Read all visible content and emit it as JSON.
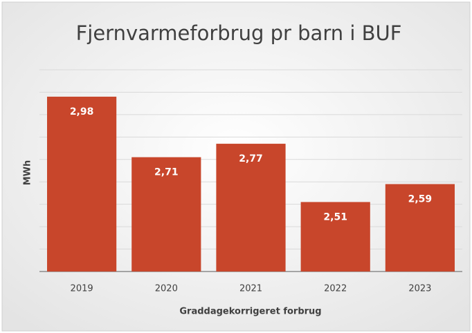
{
  "chart_data": {
    "type": "bar",
    "title": "Fjernvarmeforbrug pr barn i BUF",
    "xlabel": "Graddagekorrigeret forbrug",
    "ylabel": "MWh",
    "categories": [
      "2019",
      "2020",
      "2021",
      "2022",
      "2023"
    ],
    "values": [
      2.98,
      2.71,
      2.77,
      2.51,
      2.59
    ],
    "value_labels": [
      "2,98",
      "2,71",
      "2,77",
      "2,51",
      "2,59"
    ],
    "color": "#c8462b",
    "ylim": [
      2.2,
      3.1
    ],
    "yticks": [
      2.2,
      2.3,
      2.4,
      2.5,
      2.6,
      2.7,
      2.8,
      2.9,
      3.0,
      3.1
    ],
    "grid": true
  }
}
